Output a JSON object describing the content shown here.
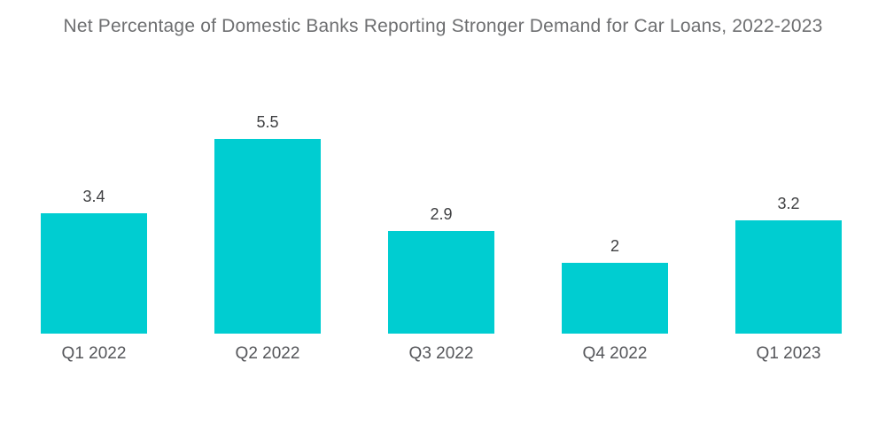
{
  "title": "Net Percentage of Domestic Banks Reporting Stronger Demand for Car Loans, 2022-2023",
  "colors": {
    "bar": "#00CDD1",
    "title_text": "#6E6F71",
    "value_text": "#3E3F41",
    "category_text": "#55565A",
    "background": "#FFFFFF"
  },
  "chart_data": {
    "type": "bar",
    "categories": [
      "Q1 2022",
      "Q2 2022",
      "Q3 2022",
      "Q4 2022",
      "Q1 2023"
    ],
    "values": [
      3.4,
      5.5,
      2.9,
      2,
      3.2
    ],
    "data_labels": [
      "3.4",
      "5.5",
      "2.9",
      "2",
      "3.2"
    ],
    "title": "Net Percentage of Domestic Banks Reporting Stronger Demand for Car Loans, 2022-2023",
    "xlabel": "",
    "ylabel": "",
    "ylim": [
      0,
      5.5
    ],
    "grid": false,
    "legend": false,
    "axis_lines": false,
    "value_labels_shown": true
  }
}
